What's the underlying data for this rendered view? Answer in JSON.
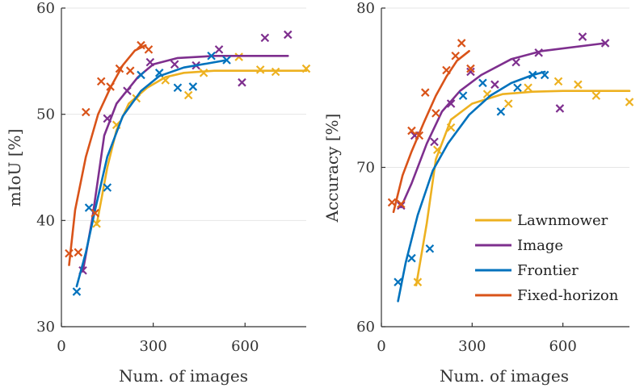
{
  "chart_data": [
    {
      "type": "line",
      "xlabel": "Num. of images",
      "ylabel": "mIoU [%]",
      "xlim": [
        0,
        800
      ],
      "ylim": [
        30,
        60
      ],
      "xticks": [
        0,
        300,
        600
      ],
      "yticks": [
        30,
        40,
        50,
        60
      ],
      "xtick_labels": [
        "0",
        "300",
        "600"
      ],
      "ytick_labels": [
        "30",
        "40",
        "50",
        "60"
      ],
      "grid": "horizontal",
      "series": [
        {
          "name": "Lawnmower",
          "color": "#EDB120",
          "fit": [
            [
              115,
              39.6
            ],
            [
              150,
              45
            ],
            [
              180,
              48.5
            ],
            [
              220,
              51
            ],
            [
              280,
              52.5
            ],
            [
              340,
              53.5
            ],
            [
              400,
              53.9
            ],
            [
              500,
              54.1
            ],
            [
              600,
              54.1
            ],
            [
              700,
              54.1
            ],
            [
              800,
              54.1
            ]
          ],
          "markers": [
            [
              115,
              39.7
            ],
            [
              180,
              49
            ],
            [
              245,
              51.5
            ],
            [
              340,
              53.2
            ],
            [
              415,
              51.8
            ],
            [
              465,
              53.9
            ],
            [
              580,
              55.4
            ],
            [
              650,
              54.2
            ],
            [
              700,
              54.0
            ],
            [
              800,
              54.3
            ]
          ]
        },
        {
          "name": "Image",
          "color": "#7E2F8E",
          "fit": [
            [
              70,
              35.2
            ],
            [
              100,
              40
            ],
            [
              140,
              48
            ],
            [
              180,
              51
            ],
            [
              250,
              53.5
            ],
            [
              300,
              54.7
            ],
            [
              380,
              55.3
            ],
            [
              500,
              55.5
            ],
            [
              740,
              55.5
            ]
          ],
          "markers": [
            [
              70,
              35.3
            ],
            [
              150,
              49.6
            ],
            [
              215,
              52.2
            ],
            [
              290,
              54.9
            ],
            [
              370,
              54.7
            ],
            [
              440,
              54.6
            ],
            [
              515,
              56.1
            ],
            [
              590,
              53.0
            ],
            [
              665,
              57.2
            ],
            [
              740,
              57.5
            ]
          ]
        },
        {
          "name": "Frontier",
          "color": "#0072BD",
          "fit": [
            [
              50,
              33.8
            ],
            [
              80,
              37
            ],
            [
              110,
              41
            ],
            [
              150,
              46
            ],
            [
              200,
              49.8
            ],
            [
              260,
              52.2
            ],
            [
              320,
              53.6
            ],
            [
              400,
              54.4
            ],
            [
              480,
              54.8
            ],
            [
              540,
              55.1
            ]
          ],
          "markers": [
            [
              50,
              33.3
            ],
            [
              90,
              41.2
            ],
            [
              150,
              43.1
            ],
            [
              260,
              53.7
            ],
            [
              320,
              53.9
            ],
            [
              380,
              52.5
            ],
            [
              430,
              52.6
            ],
            [
              490,
              55.5
            ],
            [
              540,
              55.1
            ]
          ]
        },
        {
          "name": "Fixed-horizon",
          "color": "#D95319",
          "fit": [
            [
              25,
              35.8
            ],
            [
              45,
              41
            ],
            [
              80,
              46
            ],
            [
              120,
              50
            ],
            [
              160,
              52.5
            ],
            [
              200,
              54.6
            ],
            [
              240,
              56
            ],
            [
              275,
              56.5
            ]
          ],
          "markers": [
            [
              25,
              36.9
            ],
            [
              55,
              37
            ],
            [
              80,
              50.2
            ],
            [
              110,
              40.7
            ],
            [
              130,
              53.1
            ],
            [
              160,
              52.6
            ],
            [
              190,
              54.3
            ],
            [
              225,
              54.1
            ],
            [
              260,
              56.5
            ],
            [
              285,
              56.1
            ]
          ]
        }
      ]
    },
    {
      "type": "line",
      "xlabel": "Num. of images",
      "ylabel": "Accuracy [%]",
      "xlim": [
        0,
        820
      ],
      "ylim": [
        60,
        80
      ],
      "xticks": [
        0,
        300,
        600
      ],
      "yticks": [
        60,
        70,
        80
      ],
      "xtick_labels": [
        "0",
        "300",
        "600"
      ],
      "ytick_labels": [
        "60",
        "70",
        "80"
      ],
      "grid": "horizontal",
      "legend_position": "bottom-right",
      "series": [
        {
          "name": "Lawnmower",
          "color": "#EDB120",
          "fit": [
            [
              115,
              62.6
            ],
            [
              150,
              66.5
            ],
            [
              180,
              70.5
            ],
            [
              230,
              73
            ],
            [
              300,
              74
            ],
            [
              400,
              74.6
            ],
            [
              500,
              74.75
            ],
            [
              600,
              74.8
            ],
            [
              700,
              74.8
            ],
            [
              820,
              74.8
            ]
          ],
          "markers": [
            [
              120,
              62.8
            ],
            [
              185,
              71.1
            ],
            [
              230,
              72.5
            ],
            [
              350,
              74.6
            ],
            [
              420,
              74.0
            ],
            [
              485,
              75.0
            ],
            [
              585,
              75.4
            ],
            [
              650,
              75.2
            ],
            [
              710,
              74.5
            ],
            [
              820,
              74.1
            ]
          ]
        },
        {
          "name": "Image",
          "color": "#7E2F8E",
          "fit": [
            [
              65,
              67.5
            ],
            [
              100,
              69
            ],
            [
              150,
              71.5
            ],
            [
              200,
              73.5
            ],
            [
              260,
              74.8
            ],
            [
              330,
              75.8
            ],
            [
              430,
              76.8
            ],
            [
              530,
              77.3
            ],
            [
              740,
              77.8
            ]
          ],
          "markers": [
            [
              65,
              67.6
            ],
            [
              110,
              72.0
            ],
            [
              175,
              71.6
            ],
            [
              230,
              74.0
            ],
            [
              295,
              76.0
            ],
            [
              375,
              75.2
            ],
            [
              445,
              76.6
            ],
            [
              520,
              77.2
            ],
            [
              590,
              73.7
            ],
            [
              665,
              78.2
            ],
            [
              740,
              77.8
            ]
          ]
        },
        {
          "name": "Frontier",
          "color": "#0072BD",
          "fit": [
            [
              55,
              61.6
            ],
            [
              80,
              64
            ],
            [
              120,
              67
            ],
            [
              170,
              69.8
            ],
            [
              220,
              71.5
            ],
            [
              290,
              73.3
            ],
            [
              360,
              74.5
            ],
            [
              430,
              75.3
            ],
            [
              500,
              75.8
            ],
            [
              540,
              76
            ]
          ],
          "markers": [
            [
              55,
              62.8
            ],
            [
              100,
              64.3
            ],
            [
              160,
              64.9
            ],
            [
              270,
              74.5
            ],
            [
              335,
              75.3
            ],
            [
              395,
              73.5
            ],
            [
              450,
              75.0
            ],
            [
              500,
              75.8
            ],
            [
              540,
              75.8
            ]
          ]
        },
        {
          "name": "Fixed-horizon",
          "color": "#D95319",
          "fit": [
            [
              40,
              67.2
            ],
            [
              70,
              69.5
            ],
            [
              100,
              71
            ],
            [
              140,
              72.8
            ],
            [
              180,
              74.5
            ],
            [
              215,
              75.7
            ],
            [
              250,
              76.7
            ],
            [
              290,
              77.3
            ]
          ],
          "markers": [
            [
              35,
              67.8
            ],
            [
              65,
              67.7
            ],
            [
              100,
              72.3
            ],
            [
              125,
              72.0
            ],
            [
              145,
              74.7
            ],
            [
              180,
              73.4
            ],
            [
              215,
              76.1
            ],
            [
              245,
              77.0
            ],
            [
              265,
              77.8
            ],
            [
              295,
              76.2
            ]
          ]
        }
      ]
    }
  ]
}
